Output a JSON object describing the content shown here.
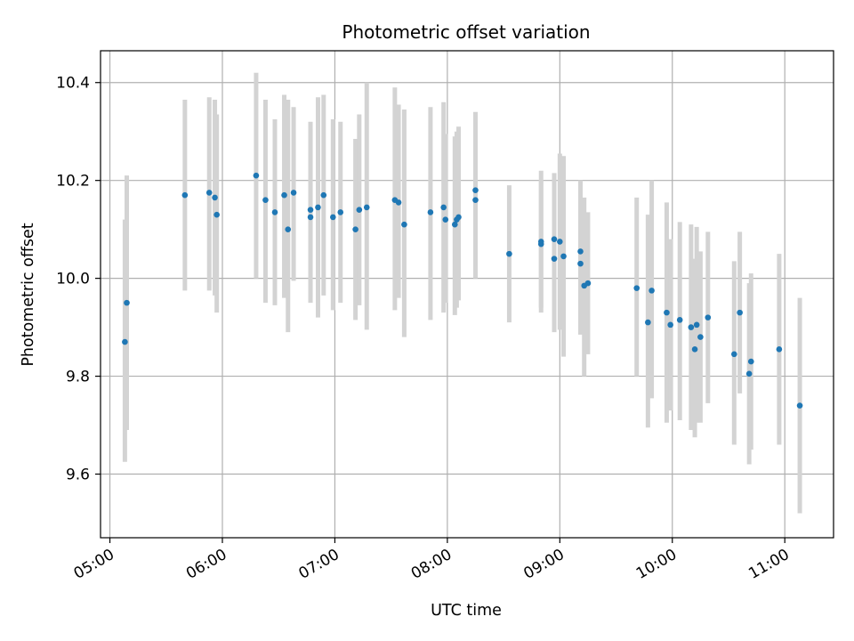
{
  "chart_data": {
    "type": "scatter",
    "title": "Photometric offset variation",
    "xlabel": "UTC time",
    "ylabel": "Photometric offset",
    "x_ticks": [
      "05:00",
      "06:00",
      "07:00",
      "08:00",
      "09:00",
      "10:00",
      "11:00"
    ],
    "y_ticks": [
      "9.6",
      "9.8",
      "10.0",
      "10.2",
      "10.4"
    ],
    "xlim": [
      "04:55",
      "11:26"
    ],
    "ylim": [
      9.47,
      10.465
    ],
    "grid": true,
    "colors": {
      "point": "#1f77b4",
      "errorbar": "#d3d3d3",
      "grid": "#b0b0b0"
    },
    "points": [
      {
        "x": "05:08",
        "y": 9.87,
        "ylow": 9.625,
        "yhigh": 10.12
      },
      {
        "x": "05:09",
        "y": 9.95,
        "ylow": 9.69,
        "yhigh": 10.21
      },
      {
        "x": "05:40",
        "y": 10.17,
        "ylow": 9.975,
        "yhigh": 10.365
      },
      {
        "x": "05:53",
        "y": 10.175,
        "ylow": 9.975,
        "yhigh": 10.37
      },
      {
        "x": "05:56",
        "y": 10.165,
        "ylow": 9.965,
        "yhigh": 10.365
      },
      {
        "x": "05:57",
        "y": 10.13,
        "ylow": 9.93,
        "yhigh": 10.335
      },
      {
        "x": "06:18",
        "y": 10.21,
        "ylow": 10.0,
        "yhigh": 10.42
      },
      {
        "x": "06:23",
        "y": 10.16,
        "ylow": 9.95,
        "yhigh": 10.365
      },
      {
        "x": "06:28",
        "y": 10.135,
        "ylow": 9.945,
        "yhigh": 10.325
      },
      {
        "x": "06:33",
        "y": 10.17,
        "ylow": 9.96,
        "yhigh": 10.375
      },
      {
        "x": "06:35",
        "y": 10.1,
        "ylow": 9.89,
        "yhigh": 10.365
      },
      {
        "x": "06:38",
        "y": 10.175,
        "ylow": 9.995,
        "yhigh": 10.35
      },
      {
        "x": "06:47",
        "y": 10.125,
        "ylow": 9.95,
        "yhigh": 10.305
      },
      {
        "x": "06:47",
        "y": 10.14,
        "ylow": 9.96,
        "yhigh": 10.32
      },
      {
        "x": "06:51",
        "y": 10.145,
        "ylow": 9.92,
        "yhigh": 10.37
      },
      {
        "x": "06:54",
        "y": 10.17,
        "ylow": 9.965,
        "yhigh": 10.375
      },
      {
        "x": "06:59",
        "y": 10.125,
        "ylow": 9.935,
        "yhigh": 10.325
      },
      {
        "x": "07:03",
        "y": 10.135,
        "ylow": 9.95,
        "yhigh": 10.32
      },
      {
        "x": "07:11",
        "y": 10.1,
        "ylow": 9.915,
        "yhigh": 10.285
      },
      {
        "x": "07:13",
        "y": 10.14,
        "ylow": 9.945,
        "yhigh": 10.335
      },
      {
        "x": "07:17",
        "y": 10.145,
        "ylow": 9.895,
        "yhigh": 10.4
      },
      {
        "x": "07:32",
        "y": 10.16,
        "ylow": 9.935,
        "yhigh": 10.39
      },
      {
        "x": "07:34",
        "y": 10.155,
        "ylow": 9.96,
        "yhigh": 10.355
      },
      {
        "x": "07:37",
        "y": 10.11,
        "ylow": 9.88,
        "yhigh": 10.345
      },
      {
        "x": "07:51",
        "y": 10.135,
        "ylow": 9.915,
        "yhigh": 10.35
      },
      {
        "x": "07:58",
        "y": 10.145,
        "ylow": 9.93,
        "yhigh": 10.36
      },
      {
        "x": "07:59",
        "y": 10.12,
        "ylow": 9.95,
        "yhigh": 10.295
      },
      {
        "x": "08:04",
        "y": 10.11,
        "ylow": 9.925,
        "yhigh": 10.29
      },
      {
        "x": "08:05",
        "y": 10.12,
        "ylow": 9.94,
        "yhigh": 10.3
      },
      {
        "x": "08:06",
        "y": 10.125,
        "ylow": 9.955,
        "yhigh": 10.31
      },
      {
        "x": "08:15",
        "y": 10.16,
        "ylow": 10.0,
        "yhigh": 10.32
      },
      {
        "x": "08:15",
        "y": 10.18,
        "ylow": 10.025,
        "yhigh": 10.34
      },
      {
        "x": "08:33",
        "y": 10.05,
        "ylow": 9.91,
        "yhigh": 10.19
      },
      {
        "x": "08:50",
        "y": 10.075,
        "ylow": 9.93,
        "yhigh": 10.22
      },
      {
        "x": "08:50",
        "y": 10.07,
        "ylow": 9.94,
        "yhigh": 10.2
      },
      {
        "x": "08:57",
        "y": 10.08,
        "ylow": 9.95,
        "yhigh": 10.215
      },
      {
        "x": "08:57",
        "y": 10.04,
        "ylow": 9.89,
        "yhigh": 10.19
      },
      {
        "x": "09:00",
        "y": 10.075,
        "ylow": 9.895,
        "yhigh": 10.255
      },
      {
        "x": "09:02",
        "y": 10.045,
        "ylow": 9.84,
        "yhigh": 10.25
      },
      {
        "x": "09:11",
        "y": 10.055,
        "ylow": 9.905,
        "yhigh": 10.2
      },
      {
        "x": "09:11",
        "y": 10.03,
        "ylow": 9.885,
        "yhigh": 10.185
      },
      {
        "x": "09:13",
        "y": 9.985,
        "ylow": 9.8,
        "yhigh": 10.165
      },
      {
        "x": "09:15",
        "y": 9.99,
        "ylow": 9.845,
        "yhigh": 10.135
      },
      {
        "x": "09:41",
        "y": 9.98,
        "ylow": 9.8,
        "yhigh": 10.165
      },
      {
        "x": "09:47",
        "y": 9.91,
        "ylow": 9.695,
        "yhigh": 10.13
      },
      {
        "x": "09:49",
        "y": 9.975,
        "ylow": 9.755,
        "yhigh": 10.2
      },
      {
        "x": "09:57",
        "y": 9.93,
        "ylow": 9.705,
        "yhigh": 10.155
      },
      {
        "x": "09:59",
        "y": 9.905,
        "ylow": 9.73,
        "yhigh": 10.08
      },
      {
        "x": "10:04",
        "y": 9.915,
        "ylow": 9.71,
        "yhigh": 10.115
      },
      {
        "x": "10:10",
        "y": 9.9,
        "ylow": 9.69,
        "yhigh": 10.11
      },
      {
        "x": "10:12",
        "y": 9.855,
        "ylow": 9.675,
        "yhigh": 10.04
      },
      {
        "x": "10:13",
        "y": 9.905,
        "ylow": 9.705,
        "yhigh": 10.105
      },
      {
        "x": "10:15",
        "y": 9.88,
        "ylow": 9.705,
        "yhigh": 10.055
      },
      {
        "x": "10:19",
        "y": 9.92,
        "ylow": 9.745,
        "yhigh": 10.095
      },
      {
        "x": "10:33",
        "y": 9.845,
        "ylow": 9.66,
        "yhigh": 10.035
      },
      {
        "x": "10:36",
        "y": 9.93,
        "ylow": 9.765,
        "yhigh": 10.095
      },
      {
        "x": "10:41",
        "y": 9.805,
        "ylow": 9.62,
        "yhigh": 9.99
      },
      {
        "x": "10:42",
        "y": 9.83,
        "ylow": 9.65,
        "yhigh": 10.01
      },
      {
        "x": "10:57",
        "y": 9.855,
        "ylow": 9.66,
        "yhigh": 10.05
      },
      {
        "x": "11:08",
        "y": 9.74,
        "ylow": 9.52,
        "yhigh": 9.96
      }
    ]
  }
}
